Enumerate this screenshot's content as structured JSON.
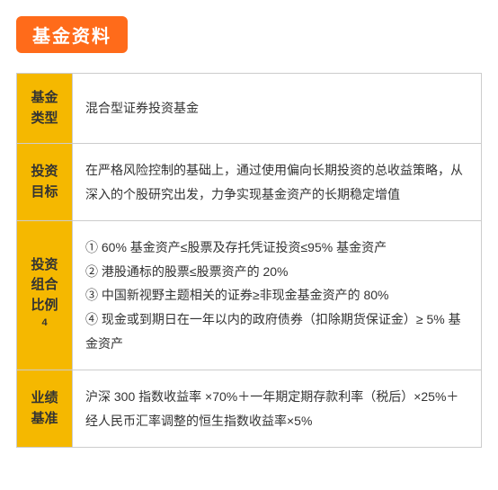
{
  "title": "基金资料",
  "rows": [
    {
      "label": "基金\n类型",
      "content": "混合型证券投资基金"
    },
    {
      "label": "投资\n目标",
      "content": "在严格风险控制的基础上，通过使用偏向长期投资的总收益策略，从深入的个股研究出发，力争实现基金资产的长期稳定增值"
    },
    {
      "label": "投资\n组合\n比例",
      "footnote": "4",
      "content": "① 60% 基金资产≤股票及存托凭证投资≤95% 基金资产\n② 港股通标的股票≤股票资产的 20%\n③ 中国新视野主题相关的证券≥非现金基金资产的 80%\n④ 现金或到期日在一年以内的政府债券（扣除期货保证金）≥ 5% 基金资产"
    },
    {
      "label": "业绩\n基准",
      "content": "沪深 300 指数收益率 ×70%＋一年期定期存款利率（税后）×25%＋ 经人民币汇率调整的恒生指数收益率×5%"
    }
  ],
  "colors": {
    "badge_bg": "#ff6b1a",
    "badge_text": "#ffffff",
    "label_bg": "#f5b800",
    "border": "#cccccc",
    "text": "#333333"
  }
}
